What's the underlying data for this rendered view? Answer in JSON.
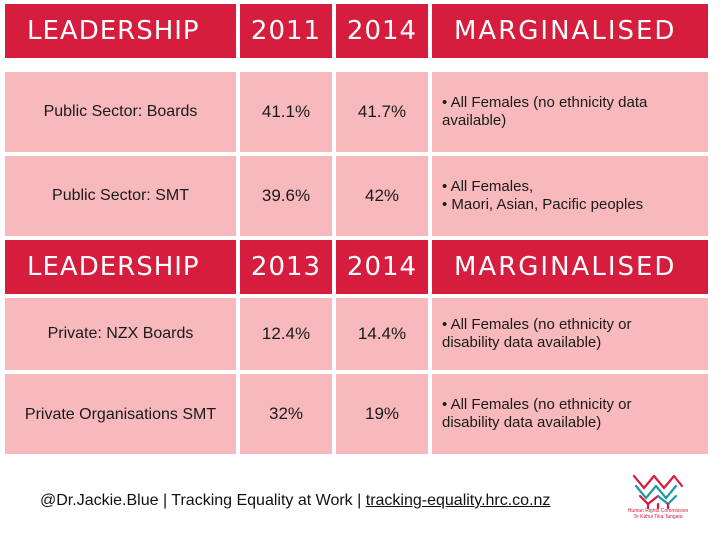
{
  "section1": {
    "headers": [
      "LEADERSHIP",
      "2011",
      "2014",
      "MARGINALISED"
    ],
    "rows": [
      {
        "label": "Public Sector: Boards",
        "v1": "41.1%",
        "v2": "41.7%",
        "notes": [
          "• All Females (no ethnicity data",
          "available)"
        ]
      },
      {
        "label": "Public Sector: SMT",
        "v1": "39.6%",
        "v2": "42%",
        "notes": [
          "• All Females,",
          "• Maori, Asian, Pacific peoples"
        ]
      }
    ]
  },
  "section2": {
    "headers": [
      "LEADERSHIP",
      "2013",
      "2014",
      "MARGINALISED"
    ],
    "rows": [
      {
        "label": "Private: NZX Boards",
        "v1": "12.4%",
        "v2": "14.4%",
        "notes": [
          "• All Females (no ethnicity or",
          "disability data available)"
        ]
      },
      {
        "label": "Private Organisations SMT",
        "v1": "32%",
        "v2": "19%",
        "notes": [
          "• All Females (no ethnicity or",
          "disability data available)"
        ]
      }
    ]
  },
  "footer": {
    "handle": "@Dr.Jackie.Blue",
    "sep1": "|",
    "middle": "Tracking Equality at Work",
    "sep2": "|",
    "link": "tracking-equality.hrc.co.nz"
  },
  "logo": {
    "name": "Human Rights Commission",
    "subtitle": "Te Kāhui Tika Tangata",
    "colors": {
      "accent": "#d71d3e",
      "teal": "#1f9aa6"
    }
  },
  "colors": {
    "header": "#d71d3e",
    "row": "#f8b9bc",
    "background": "#ffffff"
  }
}
